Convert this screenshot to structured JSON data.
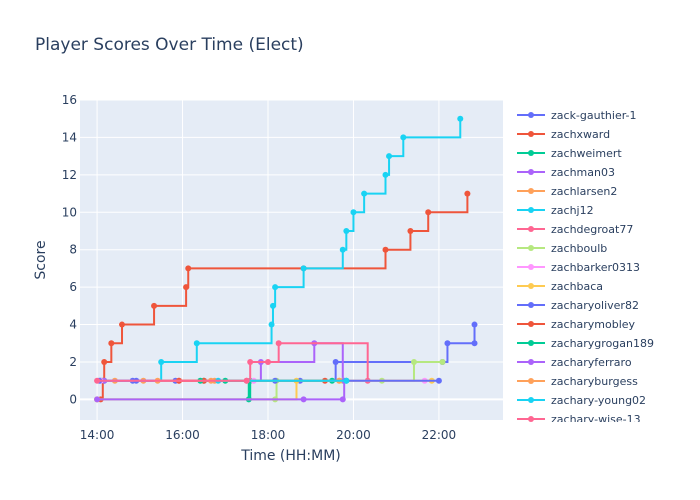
{
  "chart_data": {
    "type": "line",
    "line_shape": "step",
    "title": "Player Scores Over Time (Elect)",
    "xlabel": "Time (HH:MM)",
    "ylabel": "Score",
    "xlim": [
      "13:36",
      "23:30"
    ],
    "ylim": [
      -1.1,
      16
    ],
    "x_ticks": [
      "14:00",
      "16:00",
      "18:00",
      "20:00",
      "22:00"
    ],
    "y_ticks": [
      0,
      2,
      4,
      6,
      8,
      10,
      12,
      14,
      16
    ],
    "grid": true,
    "legend_position": "right",
    "series": [
      {
        "name": "zack-gauthier-1",
        "color": "#636efa",
        "points": [
          [
            "14:05",
            1
          ],
          [
            "14:50",
            1
          ],
          [
            "15:50",
            1
          ],
          [
            "18:45",
            1
          ],
          [
            "19:35",
            2
          ],
          [
            "22:05",
            2
          ],
          [
            "22:12",
            3
          ],
          [
            "22:50",
            3
          ],
          [
            "22:50",
            4
          ]
        ]
      },
      {
        "name": "zachxward",
        "color": "#EF553B",
        "points": [
          [
            "14:05",
            0
          ],
          [
            "14:08",
            1
          ],
          [
            "14:10",
            2
          ],
          [
            "14:20",
            3
          ],
          [
            "14:35",
            4
          ],
          [
            "15:20",
            5
          ],
          [
            "16:05",
            6
          ],
          [
            "16:08",
            7
          ],
          [
            "18:50",
            7
          ],
          [
            "20:45",
            8
          ],
          [
            "21:20",
            9
          ],
          [
            "21:45",
            10
          ],
          [
            "22:40",
            11
          ]
        ]
      },
      {
        "name": "zachweimert",
        "color": "#00cc96",
        "points": [
          [
            "14:10",
            1
          ],
          [
            "16:30",
            1
          ],
          [
            "17:33",
            0
          ],
          [
            "17:35",
            1
          ],
          [
            "19:30",
            1
          ]
        ]
      },
      {
        "name": "zachman03",
        "color": "#ab63fa",
        "points": [
          [
            "14:10",
            1
          ],
          [
            "17:50",
            2
          ],
          [
            "19:05",
            3
          ],
          [
            "19:45",
            1
          ]
        ]
      },
      {
        "name": "zachlarsen2",
        "color": "#FFA15A",
        "points": [
          [
            "14:25",
            1
          ],
          [
            "15:05",
            1
          ],
          [
            "16:45",
            1
          ]
        ]
      },
      {
        "name": "zachj12",
        "color": "#19d3f3",
        "points": [
          [
            "14:05",
            1
          ],
          [
            "15:30",
            2
          ],
          [
            "16:20",
            3
          ],
          [
            "18:05",
            4
          ],
          [
            "18:07",
            5
          ],
          [
            "18:10",
            6
          ],
          [
            "18:50",
            7
          ],
          [
            "19:45",
            8
          ],
          [
            "19:50",
            9
          ],
          [
            "20:00",
            10
          ],
          [
            "20:15",
            11
          ],
          [
            "20:45",
            12
          ],
          [
            "20:50",
            13
          ],
          [
            "21:10",
            14
          ],
          [
            "22:30",
            15
          ]
        ]
      },
      {
        "name": "zachdegroat77",
        "color": "#FF6692",
        "points": [
          [
            "15:55",
            1
          ],
          [
            "17:30",
            1
          ],
          [
            "17:35",
            2
          ],
          [
            "18:00",
            2
          ],
          [
            "18:15",
            3
          ],
          [
            "20:20",
            1
          ]
        ]
      },
      {
        "name": "zachboulb",
        "color": "#B6E880",
        "points": [
          [
            "14:00",
            0
          ],
          [
            "18:10",
            0
          ],
          [
            "18:12",
            1
          ],
          [
            "19:45",
            1
          ],
          [
            "20:40",
            1
          ],
          [
            "21:25",
            2
          ],
          [
            "22:05",
            2
          ]
        ]
      },
      {
        "name": "zachbarker0313",
        "color": "#FF97FF",
        "points": [
          [
            "14:05",
            1
          ],
          [
            "17:40",
            1
          ],
          [
            "21:40",
            1
          ]
        ]
      },
      {
        "name": "zachbaca",
        "color": "#FECB52",
        "points": [
          [
            "14:00",
            0
          ],
          [
            "18:40",
            1
          ],
          [
            "19:40",
            1
          ],
          [
            "21:50",
            1
          ]
        ]
      },
      {
        "name": "zacharyoliver82",
        "color": "#636efa",
        "points": [
          [
            "14:03",
            1
          ],
          [
            "14:55",
            1
          ],
          [
            "18:10",
            1
          ],
          [
            "22:00",
            1
          ]
        ]
      },
      {
        "name": "zacharymobley",
        "color": "#EF553B",
        "points": [
          [
            "15:55",
            1
          ],
          [
            "16:30",
            1
          ],
          [
            "19:20",
            1
          ]
        ]
      },
      {
        "name": "zacharygrogan189",
        "color": "#00cc96",
        "points": [
          [
            "16:25",
            1
          ],
          [
            "17:00",
            1
          ],
          [
            "19:50",
            1
          ]
        ]
      },
      {
        "name": "zacharyferraro",
        "color": "#ab63fa",
        "points": [
          [
            "14:00",
            0
          ],
          [
            "18:50",
            0
          ],
          [
            "19:45",
            0
          ],
          [
            "19:47",
            1
          ]
        ]
      },
      {
        "name": "zacharyburgess",
        "color": "#FFA15A",
        "points": [
          [
            "15:25",
            1
          ],
          [
            "16:40",
            1
          ],
          [
            "19:40",
            1
          ]
        ]
      },
      {
        "name": "zachary-young02",
        "color": "#19d3f3",
        "points": [
          [
            "16:50",
            1
          ],
          [
            "19:50",
            1
          ]
        ]
      },
      {
        "name": "zachary-wise-13",
        "color": "#FF6692",
        "points": [
          [
            "14:00",
            1
          ],
          [
            "17:30",
            1
          ]
        ]
      }
    ]
  }
}
